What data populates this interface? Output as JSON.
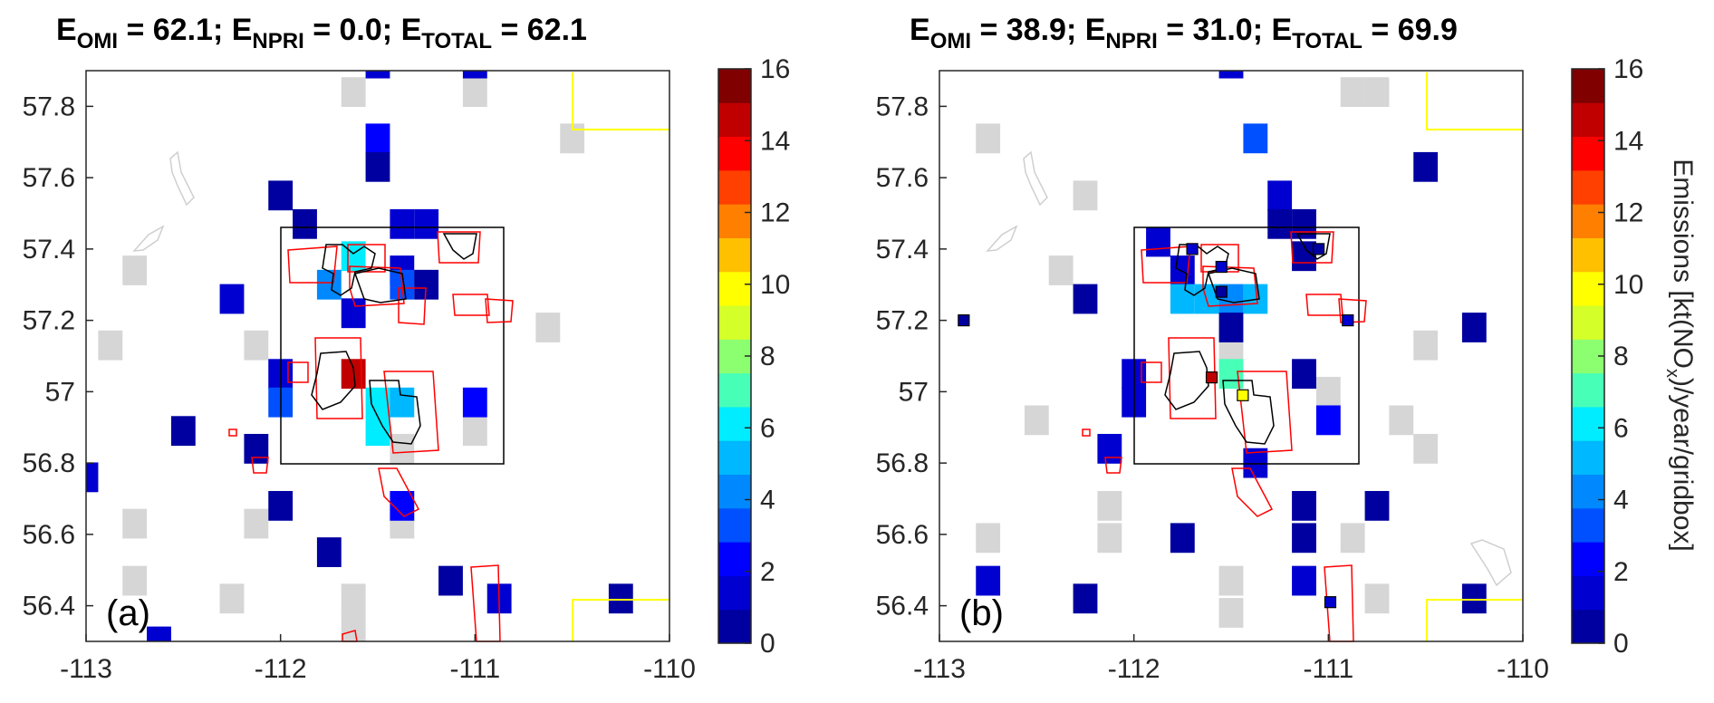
{
  "chart_data": [
    {
      "type": "heatmap",
      "panel_label": "(a)",
      "title_parts": {
        "E": "E",
        "omi_sub": "OMI",
        "omi_value": "62.1",
        "npri_sub": "NPRI",
        "npri_value": "0.0",
        "total_sub": "TOTAL",
        "total_value": "62.1"
      },
      "xlim": [
        -113,
        -110
      ],
      "ylim": [
        56.3,
        57.9
      ],
      "xticks": [
        -113,
        -112,
        -111,
        -110
      ],
      "yticks": [
        56.4,
        56.6,
        56.8,
        57.0,
        57.2,
        57.4,
        57.6,
        57.8
      ],
      "ytick_labels": [
        "56.4",
        "56.6",
        "56.8",
        "57",
        "57.2",
        "57.4",
        "57.6",
        "57.8"
      ],
      "grid_cell_size": {
        "lon": 0.125,
        "lat": 0.0833
      },
      "cells": [
        {
          "lon": -111.5,
          "lat": 57.92,
          "v": 1
        },
        {
          "lon": -111.0,
          "lat": 57.92,
          "v": 1
        },
        {
          "lon": -111.5,
          "lat": 57.71,
          "v": 2.5
        },
        {
          "lon": -111.5,
          "lat": 57.63,
          "v": 0.5
        },
        {
          "lon": -112.0,
          "lat": 57.55,
          "v": 0.5
        },
        {
          "lon": -111.875,
          "lat": 57.47,
          "v": 0.5
        },
        {
          "lon": -111.375,
          "lat": 57.47,
          "v": 1
        },
        {
          "lon": -111.25,
          "lat": 57.47,
          "v": 1
        },
        {
          "lon": -111.625,
          "lat": 57.38,
          "v": 6.5
        },
        {
          "lon": -111.375,
          "lat": 57.34,
          "v": 1
        },
        {
          "lon": -112.25,
          "lat": 57.26,
          "v": 1
        },
        {
          "lon": -111.75,
          "lat": 57.3,
          "v": 4
        },
        {
          "lon": -111.375,
          "lat": 57.3,
          "v": 3.5
        },
        {
          "lon": -111.25,
          "lat": 57.3,
          "v": 0.5
        },
        {
          "lon": -111.625,
          "lat": 57.22,
          "v": 1
        },
        {
          "lon": -112.0,
          "lat": 57.05,
          "v": 1
        },
        {
          "lon": -112.0,
          "lat": 56.97,
          "v": 3.5
        },
        {
          "lon": -111.625,
          "lat": 57.05,
          "v": 15.5
        },
        {
          "lon": -111.5,
          "lat": 56.97,
          "v": 6.5
        },
        {
          "lon": -111.375,
          "lat": 56.97,
          "v": 5.5
        },
        {
          "lon": -111.5,
          "lat": 56.89,
          "v": 6.5
        },
        {
          "lon": -111.0,
          "lat": 56.97,
          "v": 2.5
        },
        {
          "lon": -112.5,
          "lat": 56.89,
          "v": 0.5
        },
        {
          "lon": -112.125,
          "lat": 56.84,
          "v": 0.5
        },
        {
          "lon": -113.0,
          "lat": 56.76,
          "v": 1
        },
        {
          "lon": -112.0,
          "lat": 56.68,
          "v": 0.5
        },
        {
          "lon": -111.375,
          "lat": 56.68,
          "v": 2.5
        },
        {
          "lon": -111.75,
          "lat": 56.55,
          "v": 0.5
        },
        {
          "lon": -111.125,
          "lat": 56.47,
          "v": 0.5
        },
        {
          "lon": -110.875,
          "lat": 56.42,
          "v": 1
        },
        {
          "lon": -110.25,
          "lat": 56.42,
          "v": 0.5
        },
        {
          "lon": -112.625,
          "lat": 56.3,
          "v": 1
        }
      ],
      "gray_cells": [
        {
          "lon": -111.625,
          "lat": 57.84
        },
        {
          "lon": -111.0,
          "lat": 57.84
        },
        {
          "lon": -110.5,
          "lat": 57.71
        },
        {
          "lon": -112.75,
          "lat": 57.34
        },
        {
          "lon": -110.625,
          "lat": 57.18
        },
        {
          "lon": -112.875,
          "lat": 57.13
        },
        {
          "lon": -112.125,
          "lat": 57.13
        },
        {
          "lon": -111.0,
          "lat": 56.89
        },
        {
          "lon": -113.125,
          "lat": 56.84
        },
        {
          "lon": -112.75,
          "lat": 56.63
        },
        {
          "lon": -112.125,
          "lat": 56.63
        },
        {
          "lon": -111.375,
          "lat": 56.63
        },
        {
          "lon": -112.75,
          "lat": 56.47
        },
        {
          "lon": -112.25,
          "lat": 56.42
        },
        {
          "lon": -111.625,
          "lat": 56.42
        },
        {
          "lon": -111.625,
          "lat": 56.34
        },
        {
          "lon": -111.375,
          "lat": 56.84
        }
      ]
    },
    {
      "type": "heatmap",
      "panel_label": "(b)",
      "title_parts": {
        "E": "E",
        "omi_sub": "OMI",
        "omi_value": "38.9",
        "npri_sub": "NPRI",
        "npri_value": "31.0",
        "total_sub": "TOTAL",
        "total_value": "69.9"
      },
      "xlim": [
        -113,
        -110
      ],
      "ylim": [
        56.3,
        57.9
      ],
      "xticks": [
        -113,
        -112,
        -111,
        -110
      ],
      "yticks": [
        56.4,
        56.6,
        56.8,
        57.0,
        57.2,
        57.4,
        57.6,
        57.8
      ],
      "ytick_labels": [
        "56.4",
        "56.6",
        "56.8",
        "57",
        "57.2",
        "57.4",
        "57.6",
        "57.8"
      ],
      "grid_cell_size": {
        "lon": 0.125,
        "lat": 0.0833
      },
      "cells": [
        {
          "lon": -111.5,
          "lat": 57.92,
          "v": 1
        },
        {
          "lon": -111.375,
          "lat": 57.71,
          "v": 3.5
        },
        {
          "lon": -110.5,
          "lat": 57.63,
          "v": 0.5
        },
        {
          "lon": -111.25,
          "lat": 57.55,
          "v": 1
        },
        {
          "lon": -111.25,
          "lat": 57.47,
          "v": 0.5
        },
        {
          "lon": -111.125,
          "lat": 57.47,
          "v": 0.5
        },
        {
          "lon": -111.125,
          "lat": 57.38,
          "v": 0.5
        },
        {
          "lon": -111.875,
          "lat": 57.42,
          "v": 1
        },
        {
          "lon": -111.75,
          "lat": 57.34,
          "v": 1
        },
        {
          "lon": -112.25,
          "lat": 57.26,
          "v": 0.5
        },
        {
          "lon": -111.625,
          "lat": 57.26,
          "v": 5
        },
        {
          "lon": -111.75,
          "lat": 57.26,
          "v": 5.5
        },
        {
          "lon": -111.5,
          "lat": 57.26,
          "v": 4
        },
        {
          "lon": -111.375,
          "lat": 57.26,
          "v": 5.5
        },
        {
          "lon": -111.5,
          "lat": 57.18,
          "v": 0.5
        },
        {
          "lon": -110.25,
          "lat": 57.18,
          "v": 0.5
        },
        {
          "lon": -112.0,
          "lat": 57.05,
          "v": 1
        },
        {
          "lon": -112.0,
          "lat": 56.97,
          "v": 1
        },
        {
          "lon": -111.5,
          "lat": 57.05,
          "v": 7
        },
        {
          "lon": -111.125,
          "lat": 57.05,
          "v": 0.5
        },
        {
          "lon": -111.0,
          "lat": 56.92,
          "v": 2.5
        },
        {
          "lon": -112.125,
          "lat": 56.84,
          "v": 1
        },
        {
          "lon": -111.375,
          "lat": 56.8,
          "v": 1
        },
        {
          "lon": -111.125,
          "lat": 56.68,
          "v": 0.5
        },
        {
          "lon": -110.75,
          "lat": 56.68,
          "v": 0.5
        },
        {
          "lon": -111.125,
          "lat": 56.59,
          "v": 0.5
        },
        {
          "lon": -111.75,
          "lat": 56.59,
          "v": 0.5
        },
        {
          "lon": -112.75,
          "lat": 56.47,
          "v": 1
        },
        {
          "lon": -111.125,
          "lat": 56.47,
          "v": 1
        },
        {
          "lon": -112.25,
          "lat": 56.42,
          "v": 0.5
        },
        {
          "lon": -110.25,
          "lat": 56.42,
          "v": 0.5
        }
      ],
      "point_sources": [
        {
          "lon": -112.875,
          "lat": 57.2,
          "v": 0.5
        },
        {
          "lon": -111.6,
          "lat": 57.04,
          "v": 15
        },
        {
          "lon": -111.44,
          "lat": 56.99,
          "v": 10
        },
        {
          "lon": -111.7,
          "lat": 57.4,
          "v": 1
        },
        {
          "lon": -111.55,
          "lat": 57.35,
          "v": 1
        },
        {
          "lon": -111.55,
          "lat": 57.28,
          "v": 0.5
        },
        {
          "lon": -111.05,
          "lat": 57.4,
          "v": 0.5
        },
        {
          "lon": -110.9,
          "lat": 57.2,
          "v": 1
        },
        {
          "lon": -110.99,
          "lat": 56.41,
          "v": 1
        }
      ],
      "gray_cells": [
        {
          "lon": -110.875,
          "lat": 57.84
        },
        {
          "lon": -110.75,
          "lat": 57.84
        },
        {
          "lon": -112.75,
          "lat": 57.71
        },
        {
          "lon": -112.25,
          "lat": 57.55
        },
        {
          "lon": -112.375,
          "lat": 57.34
        },
        {
          "lon": -111.5,
          "lat": 57.13
        },
        {
          "lon": -110.5,
          "lat": 57.13
        },
        {
          "lon": -111.0,
          "lat": 57.0
        },
        {
          "lon": -112.5,
          "lat": 56.92
        },
        {
          "lon": -110.625,
          "lat": 56.92
        },
        {
          "lon": -110.5,
          "lat": 56.84
        },
        {
          "lon": -113.125,
          "lat": 56.76
        },
        {
          "lon": -112.125,
          "lat": 56.68
        },
        {
          "lon": -112.125,
          "lat": 56.59
        },
        {
          "lon": -112.75,
          "lat": 56.59
        },
        {
          "lon": -110.875,
          "lat": 56.59
        },
        {
          "lon": -111.5,
          "lat": 56.47
        },
        {
          "lon": -111.5,
          "lat": 56.38
        },
        {
          "lon": -110.75,
          "lat": 56.42
        }
      ]
    }
  ],
  "colorbar": {
    "label_main": "Emissions [kt(NO",
    "label_sub": "x",
    "label_rest": ")/year/gridbox]",
    "min": 0,
    "max": 16,
    "ticks": [
      0,
      2,
      4,
      6,
      8,
      10,
      12,
      14,
      16
    ],
    "colors": [
      "#0000a0",
      "#0000d0",
      "#0000ff",
      "#0050ff",
      "#0088ff",
      "#00b8ff",
      "#00ecff",
      "#48ffb8",
      "#8cff70",
      "#d4ff28",
      "#ffff00",
      "#ffc000",
      "#ff8000",
      "#ff4000",
      "#ff0000",
      "#c00000",
      "#800000"
    ]
  }
}
